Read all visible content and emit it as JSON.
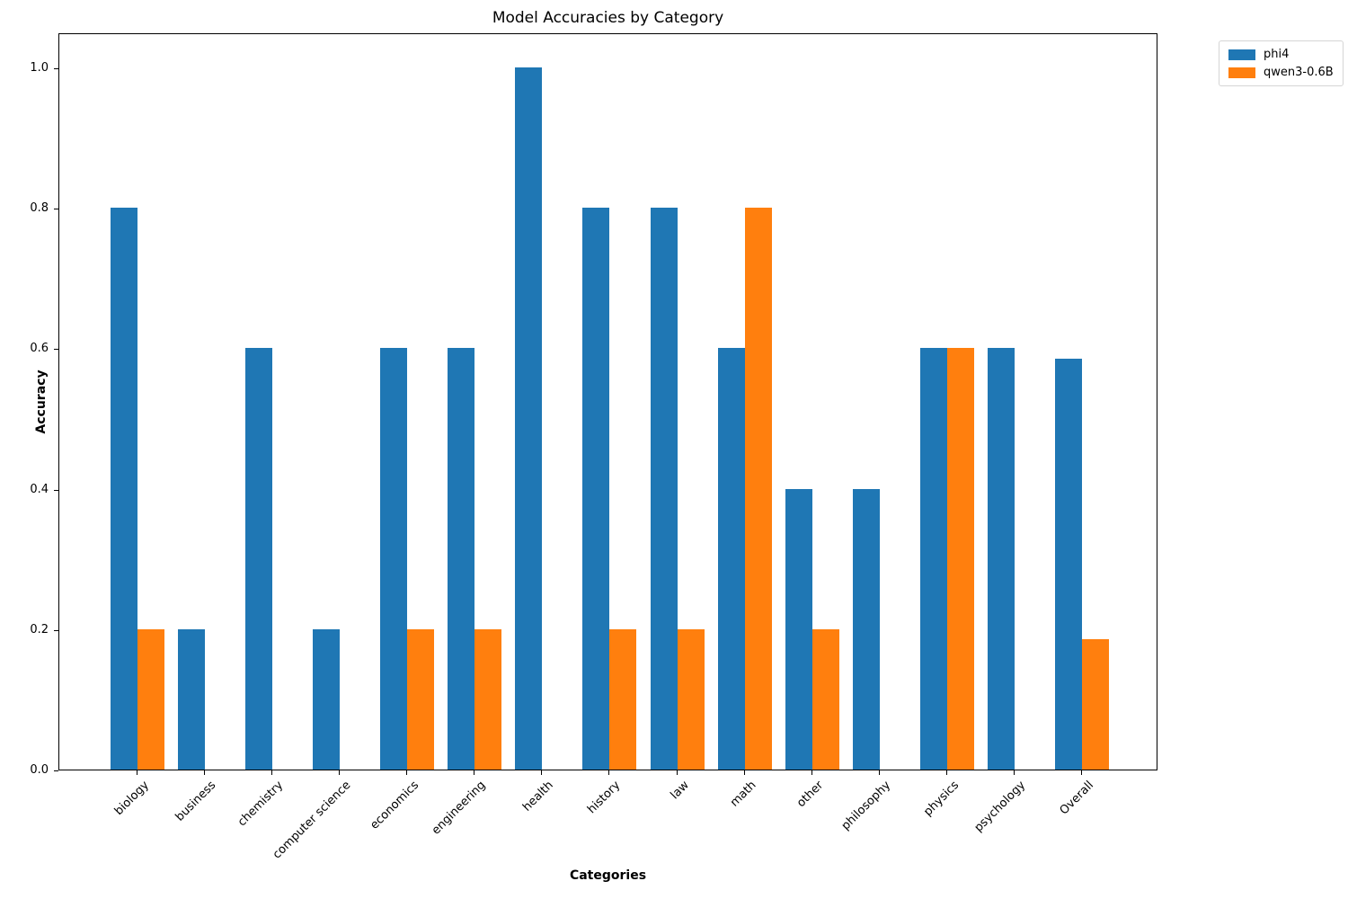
{
  "figure": {
    "title": "Model Accuracies by Category",
    "xlabel": "Categories",
    "ylabel": "Accuracy"
  },
  "chart_data": {
    "type": "bar",
    "title": "Model Accuracies by Category",
    "xlabel": "Categories",
    "ylabel": "Accuracy",
    "categories": [
      "biology",
      "business",
      "chemistry",
      "computer science",
      "economics",
      "engineering",
      "health",
      "history",
      "law",
      "math",
      "other",
      "philosophy",
      "physics",
      "psychology",
      "Overall"
    ],
    "series": [
      {
        "name": "phi4",
        "color": "#1f77b4",
        "values": [
          0.8,
          0.2,
          0.6,
          0.2,
          0.6,
          0.6,
          1.0,
          0.8,
          0.8,
          0.6,
          0.4,
          0.4,
          0.6,
          0.6,
          0.5857
        ]
      },
      {
        "name": "qwen3-0.6B",
        "color": "#ff7f0e",
        "values": [
          0.2,
          0.0,
          0.0,
          0.0,
          0.2,
          0.2,
          0.0,
          0.2,
          0.2,
          0.8,
          0.2,
          0.0,
          0.6,
          0.0,
          0.1857
        ]
      }
    ],
    "ylim": [
      0,
      1.05
    ],
    "yticks": [
      "0.0",
      "0.2",
      "0.4",
      "0.6",
      "0.8",
      "1.0"
    ],
    "grid": false,
    "legend_position": "upper-right-outside"
  }
}
